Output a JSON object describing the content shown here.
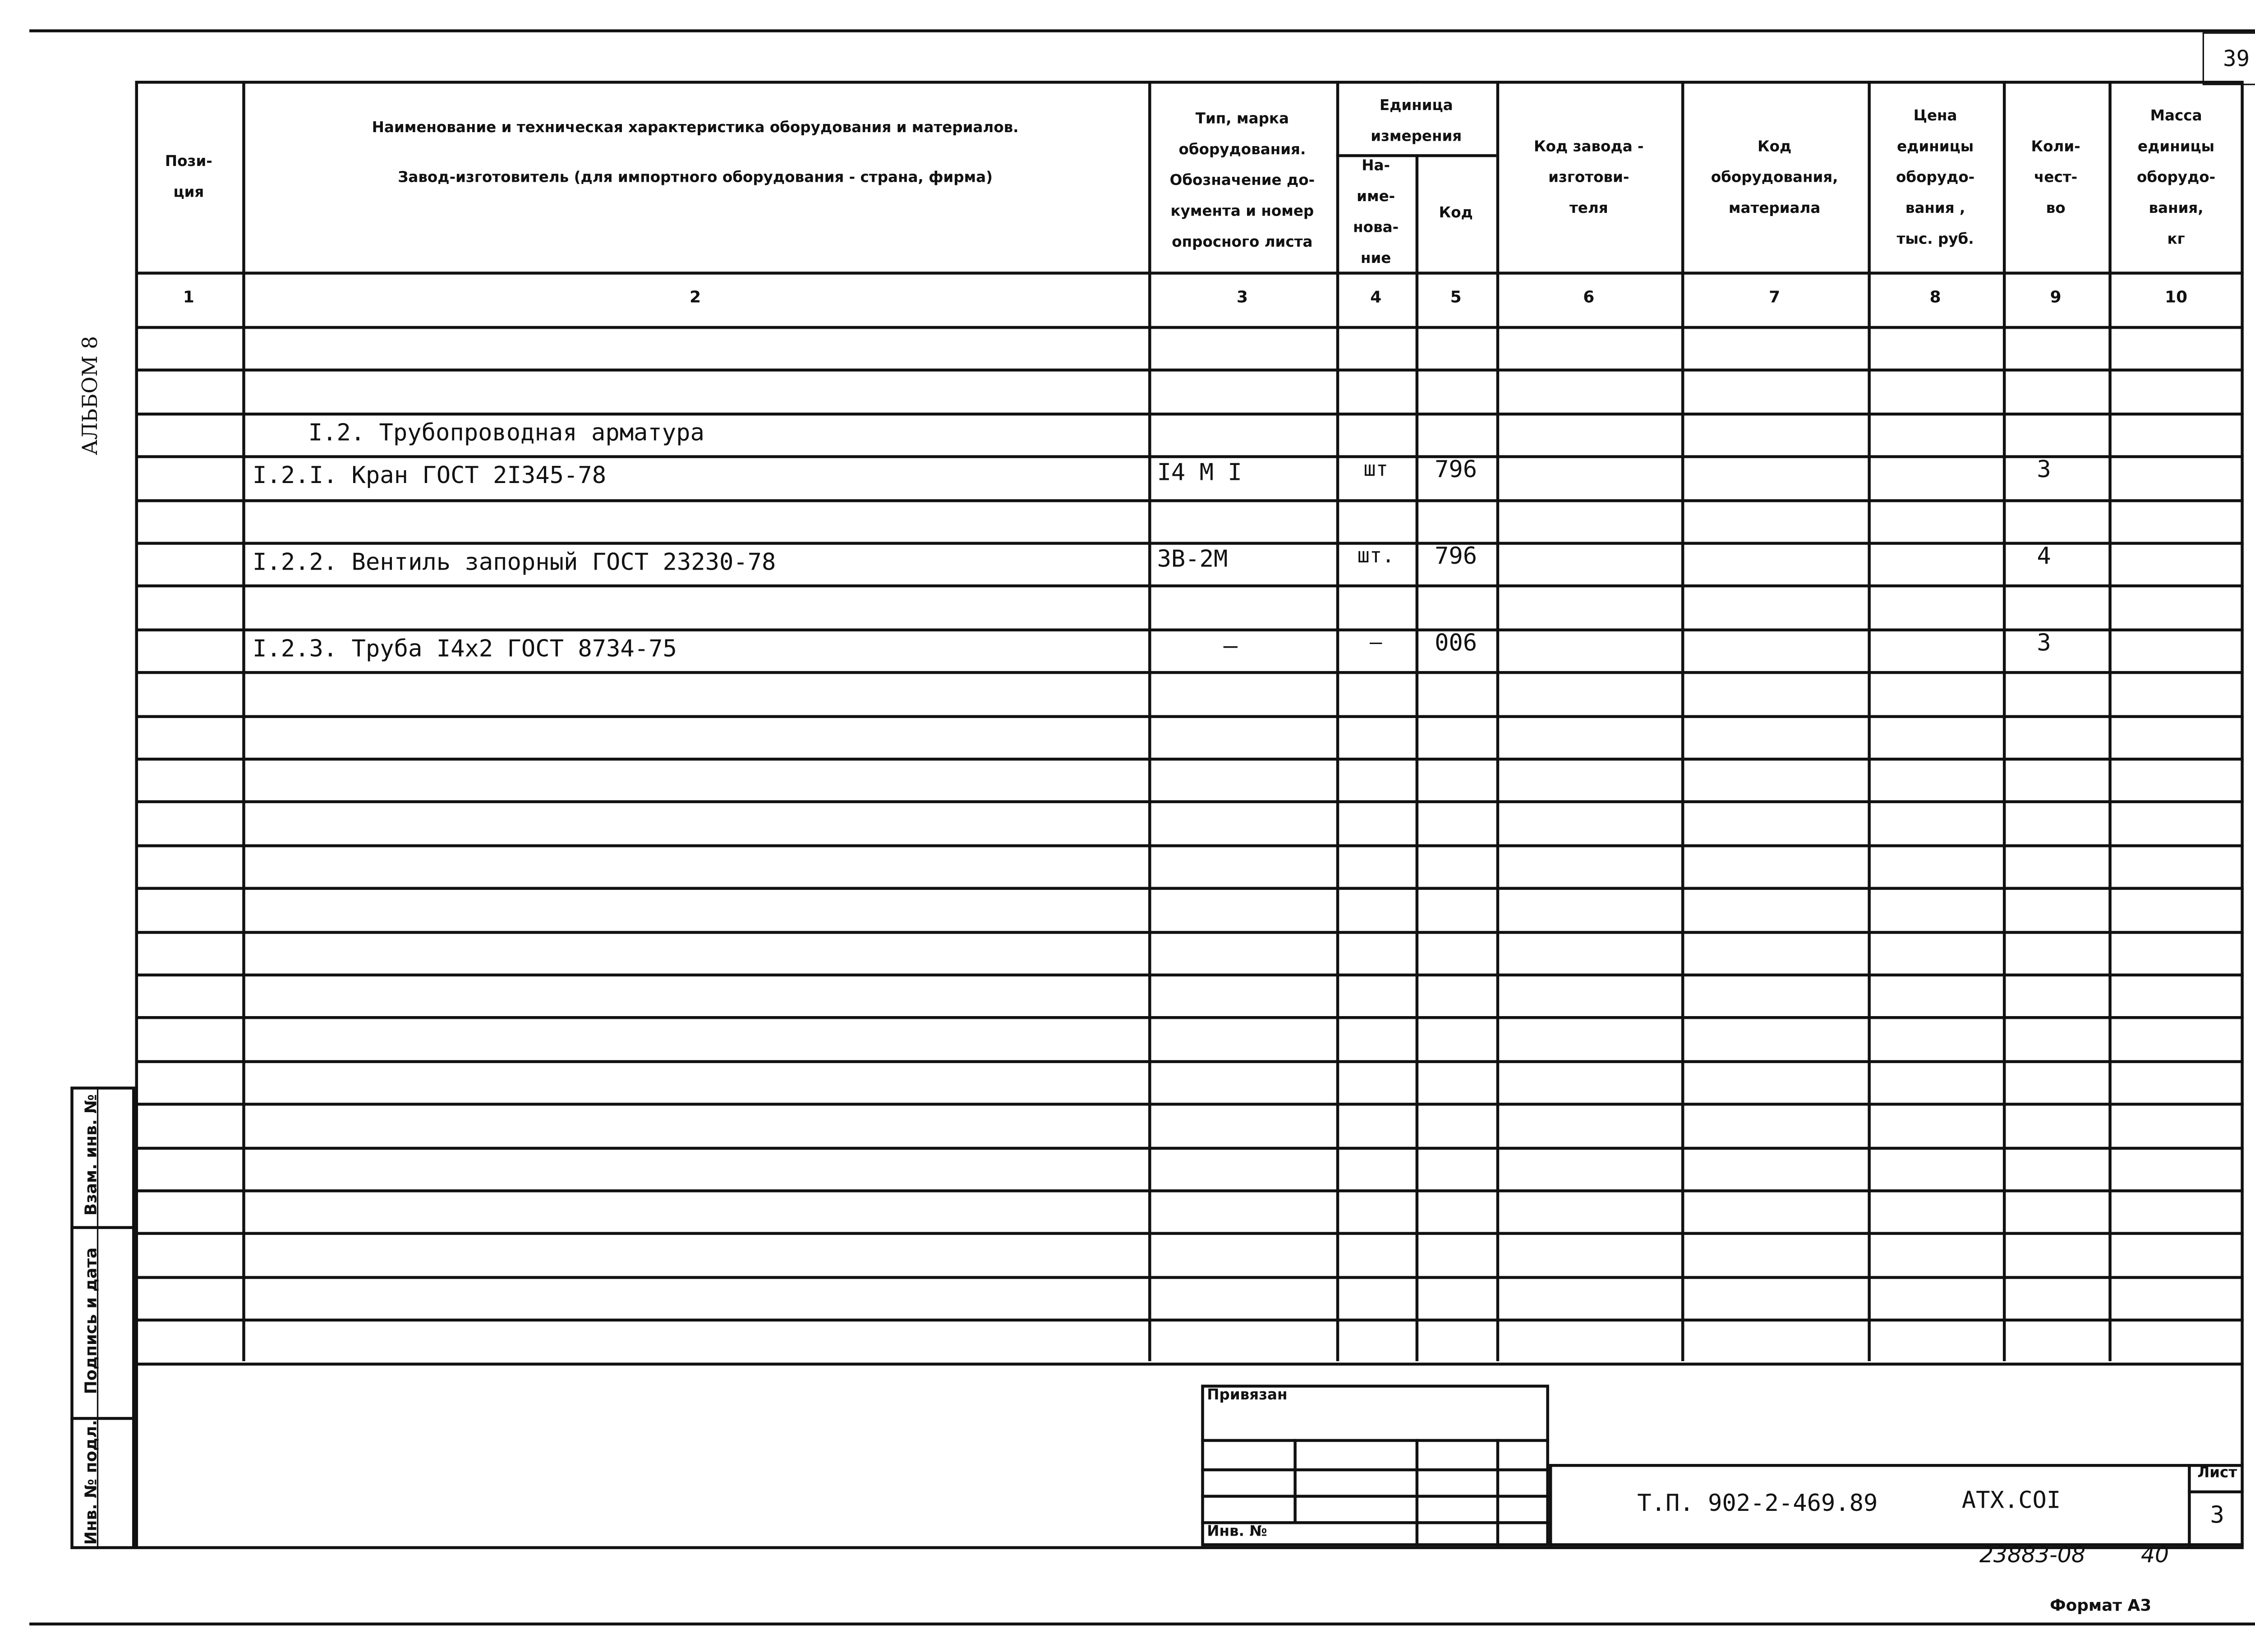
{
  "sheet_number_top": "39",
  "album_label": "АЛЬБОМ 8",
  "header": {
    "col1": [
      "Пози-",
      "ция"
    ],
    "col2": [
      "Наименование и техническая характеристика  оборудования и материалов.",
      "Завод-изготовитель  (для импортного оборудования -  страна, фирма)"
    ],
    "col3": [
      "Тип,       марка",
      "оборудования.",
      "Обозначение  до-",
      "кумента  и  номер",
      "опросного листа"
    ],
    "unit_group": [
      "Единица",
      "измерения"
    ],
    "col4": [
      "На-",
      "име-",
      "нова-",
      "ние"
    ],
    "col5": [
      "Код"
    ],
    "col6": [
      "Код  завода -",
      "изготови-",
      "теля"
    ],
    "col7": [
      "Код",
      "оборудования,",
      "материала"
    ],
    "col8": [
      "Цена",
      "единицы",
      "оборудо-",
      "вания ,",
      "тыс. руб."
    ],
    "col9": [
      "Коли-",
      "чест-",
      "во"
    ],
    "col10": [
      "Масса",
      "единицы",
      "оборудо-",
      "вания,",
      "кг"
    ],
    "numbers": [
      "1",
      "2",
      "3",
      "4",
      "5",
      "6",
      "7",
      "8",
      "9",
      "10"
    ]
  },
  "rows": [
    {
      "name": "",
      "type": "",
      "unit": "",
      "code": "",
      "qty": ""
    },
    {
      "name": "I.2. Трубопроводная арматура",
      "indent": true,
      "type": "",
      "unit": "",
      "code": "",
      "qty": ""
    },
    {
      "name": "I.2.I. Кран ГОСТ 2I345-78",
      "type": "I4 М I",
      "unit": "шт",
      "code": "796",
      "qty": "3"
    },
    {
      "name": "",
      "type": "",
      "unit": "",
      "code": "",
      "qty": ""
    },
    {
      "name": "I.2.2. Вентиль запорный ГОСТ 23230-78",
      "type": "3В-2М",
      "unit": "шт.",
      "code": "796",
      "qty": "4"
    },
    {
      "name": "",
      "type": "",
      "unit": "",
      "code": "",
      "qty": ""
    },
    {
      "name": "I.2.3. Труба I4x2 ГОСТ 8734-75",
      "type": "–",
      "unit": "–",
      "code": "006",
      "qty": "3"
    }
  ],
  "left_stamp": {
    "replaced_inv": "Взам. инв. №",
    "signature_date": "Подпись и дата",
    "inv_orig": "Инв. № подл."
  },
  "binding_stamp": {
    "title": "Привязан",
    "inv_label": "Инв. №"
  },
  "title_block": {
    "doc_code": "Т.П. 902-2-469.89",
    "doc_mark": "АТХ.СОI",
    "sheet_label": "Лист",
    "sheet_value": "3"
  },
  "archive_number": "23883-08",
  "archive_page": "40",
  "format_label": "Формат А3"
}
